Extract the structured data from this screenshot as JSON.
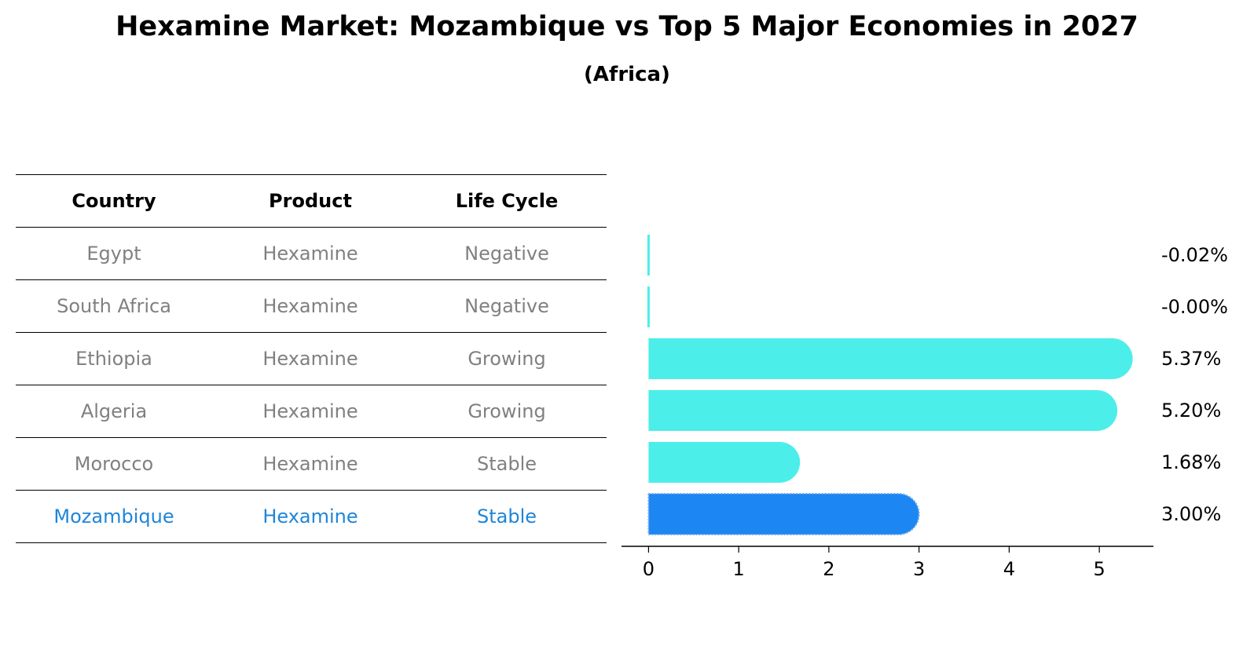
{
  "title": "Hexamine Market: Mozambique vs Top 5 Major Economies in 2027",
  "subtitle": "(Africa)",
  "table": {
    "headers": [
      "Country",
      "Product",
      "Life Cycle"
    ],
    "rows": [
      {
        "country": "Egypt",
        "product": "Hexamine",
        "life_cycle": "Negative"
      },
      {
        "country": "South Africa",
        "product": "Hexamine",
        "life_cycle": "Negative"
      },
      {
        "country": "Ethiopia",
        "product": "Hexamine",
        "life_cycle": "Growing"
      },
      {
        "country": "Algeria",
        "product": "Hexamine",
        "life_cycle": "Growing"
      },
      {
        "country": "Morocco",
        "product": "Hexamine",
        "life_cycle": "Stable"
      },
      {
        "country": "Mozambique",
        "product": "Hexamine",
        "life_cycle": "Stable"
      }
    ],
    "highlight_row": 5,
    "colors": {
      "header": "#000000",
      "text": "#808080",
      "highlight": "#1f85d8"
    }
  },
  "chart_data": {
    "type": "bar",
    "orientation": "horizontal",
    "categories": [
      "Egypt",
      "South Africa",
      "Ethiopia",
      "Algeria",
      "Morocco",
      "Mozambique"
    ],
    "values": [
      -0.02,
      -0.0,
      5.37,
      5.2,
      1.68,
      3.0
    ],
    "value_labels": [
      "-0.02%",
      "-0.00%",
      "5.37%",
      "5.20%",
      "1.68%",
      "3.00%"
    ],
    "xlim": [
      -0.3,
      5.6
    ],
    "xticks": [
      "0",
      "1",
      "2",
      "3",
      "4",
      "5"
    ],
    "colors": {
      "default": "#4ceeea",
      "highlight": "#1c86f2"
    },
    "highlight_index": 5,
    "grid": false,
    "legend": "none"
  }
}
